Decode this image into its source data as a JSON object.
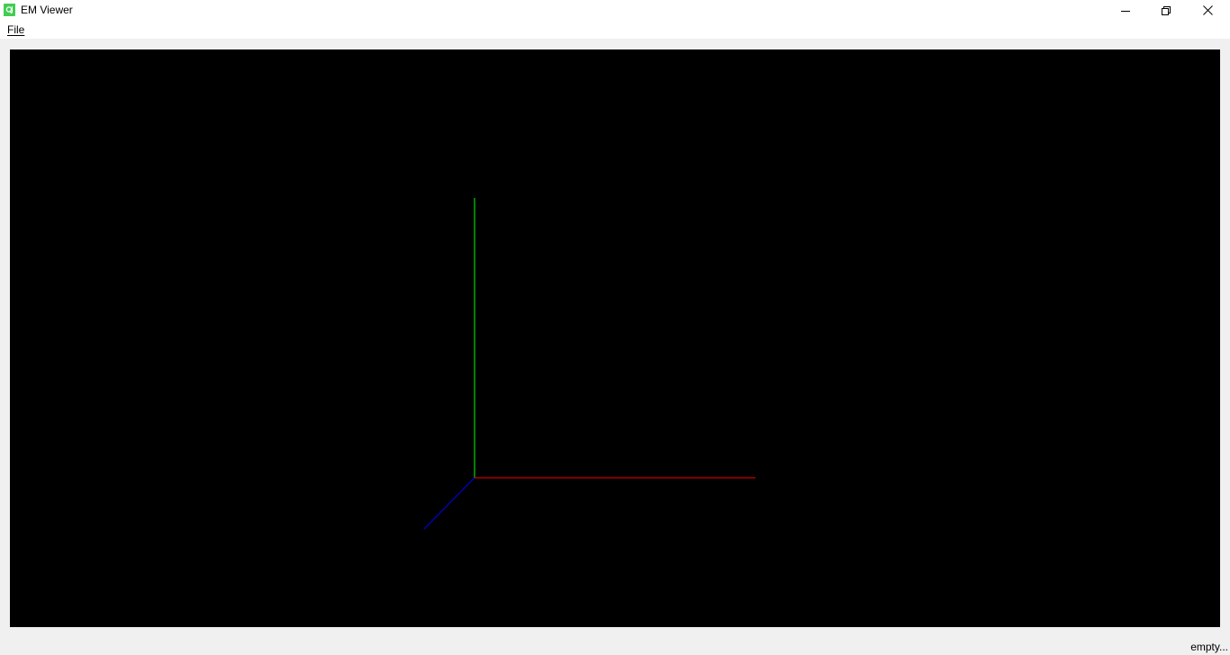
{
  "window": {
    "title": "EM Viewer",
    "icon": "qt-icon",
    "controls": {
      "minimize_icon": "minimize-icon",
      "maximize_icon": "restore-icon",
      "close_icon": "close-icon"
    }
  },
  "menubar": {
    "items": [
      {
        "label": "File",
        "mnemonic": "F"
      }
    ]
  },
  "viewport": {
    "background": "#000000",
    "axes": {
      "x": {
        "color": "#ff0000"
      },
      "y": {
        "color": "#00ff00"
      },
      "z": {
        "color": "#0000ff"
      }
    }
  },
  "statusbar": {
    "message": "empty..."
  }
}
